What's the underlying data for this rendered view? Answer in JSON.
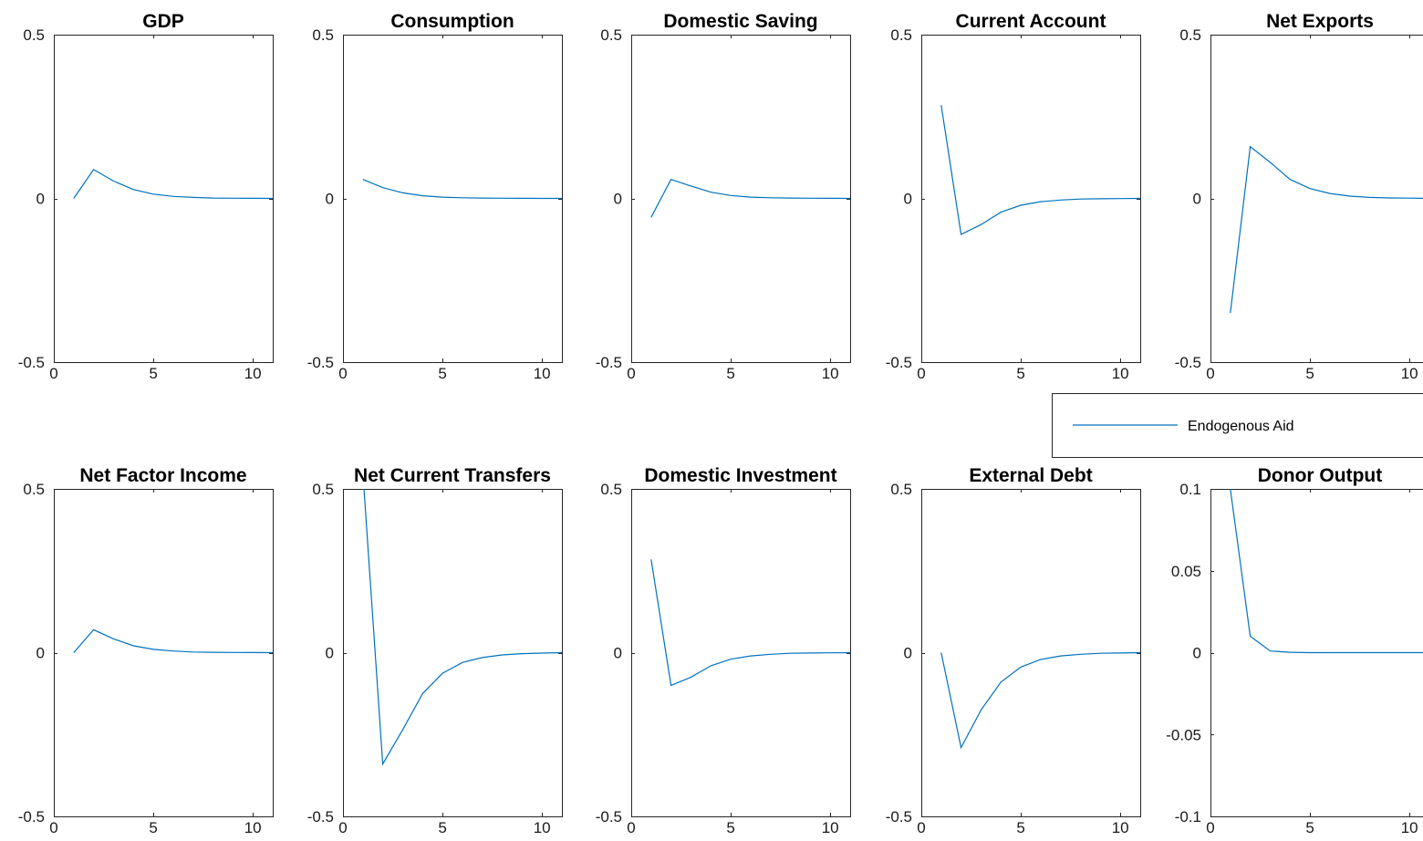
{
  "chart_data": [
    {
      "type": "line",
      "title": "GDP",
      "xlim": [
        0,
        11
      ],
      "ylim": [
        -0.5,
        0.5
      ],
      "xticks": [
        "0",
        "5",
        "10"
      ],
      "yticks": [
        "-0.5",
        "0",
        "0.5"
      ],
      "x": [
        1,
        2,
        3,
        4,
        5,
        6,
        7,
        8,
        9,
        10,
        11
      ],
      "series": [
        {
          "name": "Endogenous Aid",
          "values": [
            0,
            0.088,
            0.053,
            0.027,
            0.013,
            0.006,
            0.003,
            0.001,
            0.0005,
            0.0002,
            0
          ]
        }
      ]
    },
    {
      "type": "line",
      "title": "Consumption",
      "xlim": [
        0,
        11
      ],
      "ylim": [
        -0.5,
        0.5
      ],
      "xticks": [
        "0",
        "5",
        "10"
      ],
      "yticks": [
        "-0.5",
        "0",
        "0.5"
      ],
      "x": [
        1,
        2,
        3,
        4,
        5,
        6,
        7,
        8,
        9,
        10,
        11
      ],
      "series": [
        {
          "name": "Endogenous Aid",
          "values": [
            0.058,
            0.033,
            0.017,
            0.008,
            0.004,
            0.002,
            0.001,
            0.0005,
            0.0002,
            0.0001,
            0
          ]
        }
      ]
    },
    {
      "type": "line",
      "title": "Domestic Saving",
      "xlim": [
        0,
        11
      ],
      "ylim": [
        -0.5,
        0.5
      ],
      "xticks": [
        "0",
        "5",
        "10"
      ],
      "yticks": [
        "-0.5",
        "0",
        "0.5"
      ],
      "x": [
        1,
        2,
        3,
        4,
        5,
        6,
        7,
        8,
        9,
        10,
        11
      ],
      "series": [
        {
          "name": "Endogenous Aid",
          "values": [
            -0.058,
            0.058,
            0.038,
            0.019,
            0.009,
            0.004,
            0.002,
            0.001,
            0.0005,
            0.0002,
            0
          ]
        }
      ]
    },
    {
      "type": "line",
      "title": "Current Account",
      "xlim": [
        0,
        11
      ],
      "ylim": [
        -0.5,
        0.5
      ],
      "xticks": [
        "0",
        "5",
        "10"
      ],
      "yticks": [
        "-0.5",
        "0",
        "0.5"
      ],
      "x": [
        1,
        2,
        3,
        4,
        5,
        6,
        7,
        8,
        9,
        10,
        11
      ],
      "series": [
        {
          "name": "Endogenous Aid",
          "values": [
            0.285,
            -0.11,
            -0.08,
            -0.042,
            -0.021,
            -0.01,
            -0.005,
            -0.002,
            -0.001,
            -0.0005,
            0
          ]
        }
      ]
    },
    {
      "type": "line",
      "title": "Net Exports",
      "xlim": [
        0,
        11
      ],
      "ylim": [
        -0.5,
        0.5
      ],
      "xticks": [
        "0",
        "5",
        "10"
      ],
      "yticks": [
        "-0.5",
        "0",
        "0.5"
      ],
      "x": [
        1,
        2,
        3,
        4,
        5,
        6,
        7,
        8,
        9,
        10,
        11
      ],
      "series": [
        {
          "name": "Endogenous Aid",
          "values": [
            -0.35,
            0.158,
            0.11,
            0.058,
            0.03,
            0.015,
            0.007,
            0.003,
            0.0015,
            0.0007,
            0
          ]
        }
      ]
    },
    {
      "type": "line",
      "title": "Net Factor Income",
      "xlim": [
        0,
        11
      ],
      "ylim": [
        -0.5,
        0.5
      ],
      "xticks": [
        "0",
        "5",
        "10"
      ],
      "yticks": [
        "-0.5",
        "0",
        "0.5"
      ],
      "x": [
        1,
        2,
        3,
        4,
        5,
        6,
        7,
        8,
        9,
        10,
        11
      ],
      "series": [
        {
          "name": "Endogenous Aid",
          "values": [
            0,
            0.07,
            0.042,
            0.021,
            0.01,
            0.005,
            0.002,
            0.001,
            0.0005,
            0.0002,
            0
          ]
        }
      ]
    },
    {
      "type": "line",
      "title": "Net Current Transfers",
      "xlim": [
        0,
        11
      ],
      "ylim": [
        -0.5,
        0.5
      ],
      "xticks": [
        "0",
        "5",
        "10"
      ],
      "yticks": [
        "-0.5",
        "0",
        "0.5"
      ],
      "x": [
        1,
        2,
        3,
        4,
        5,
        6,
        7,
        8,
        9,
        10,
        11
      ],
      "series": [
        {
          "name": "Endogenous Aid",
          "values": [
            0.55,
            -0.34,
            -0.235,
            -0.125,
            -0.063,
            -0.03,
            -0.015,
            -0.007,
            -0.003,
            -0.0015,
            0
          ]
        }
      ]
    },
    {
      "type": "line",
      "title": "Domestic Investment",
      "xlim": [
        0,
        11
      ],
      "ylim": [
        -0.5,
        0.5
      ],
      "xticks": [
        "0",
        "5",
        "10"
      ],
      "yticks": [
        "-0.5",
        "0",
        "0.5"
      ],
      "x": [
        1,
        2,
        3,
        4,
        5,
        6,
        7,
        8,
        9,
        10,
        11
      ],
      "series": [
        {
          "name": "Endogenous Aid",
          "values": [
            0.285,
            -0.1,
            -0.075,
            -0.04,
            -0.02,
            -0.01,
            -0.005,
            -0.002,
            -0.001,
            -0.0005,
            0
          ]
        }
      ]
    },
    {
      "type": "line",
      "title": "External Debt",
      "xlim": [
        0,
        11
      ],
      "ylim": [
        -0.5,
        0.5
      ],
      "xticks": [
        "0",
        "5",
        "10"
      ],
      "yticks": [
        "-0.5",
        "0",
        "0.5"
      ],
      "x": [
        1,
        2,
        3,
        4,
        5,
        6,
        7,
        8,
        9,
        10,
        11
      ],
      "series": [
        {
          "name": "Endogenous Aid",
          "values": [
            0,
            -0.29,
            -0.175,
            -0.09,
            -0.044,
            -0.021,
            -0.01,
            -0.005,
            -0.002,
            -0.001,
            0
          ]
        }
      ]
    },
    {
      "type": "line",
      "title": "Donor Output",
      "xlim": [
        0,
        11
      ],
      "ylim": [
        -0.1,
        0.1
      ],
      "xticks": [
        "0",
        "5",
        "10"
      ],
      "yticks": [
        "-0.1",
        "-0.05",
        "0",
        "0.05",
        "0.1"
      ],
      "x": [
        1,
        2,
        3,
        4,
        5,
        6,
        7,
        8,
        9,
        10,
        11
      ],
      "series": [
        {
          "name": "Endogenous Aid",
          "values": [
            0.1,
            0.01,
            0.001,
            0.0002,
            0,
            0,
            0,
            0,
            0,
            0,
            0
          ]
        }
      ]
    }
  ],
  "legend": {
    "label": "Endogenous Aid",
    "placement": "between rows, right"
  },
  "colors": {
    "series": "#0072BD",
    "axes": "#262626"
  }
}
